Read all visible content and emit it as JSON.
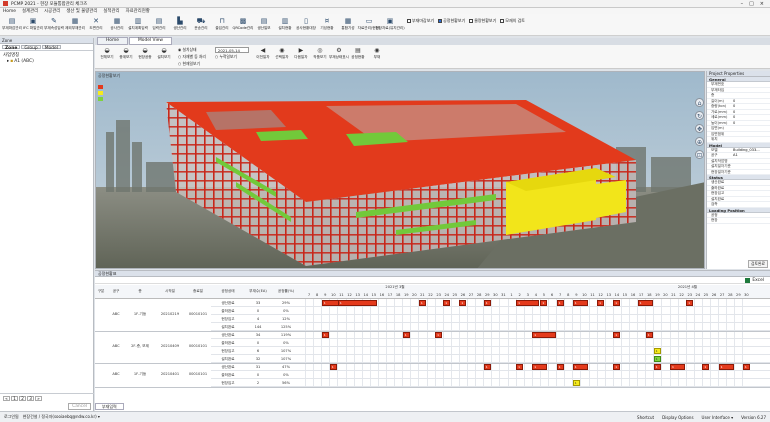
{
  "titlebar": {
    "title": "PCMP 2021 - 현장 모듈통합관리 체크즈"
  },
  "menu": [
    "Home",
    "설계관리",
    "시공관리",
    "생산 및 물량관리",
    "실적관리",
    "자료관리현황"
  ],
  "ribbon": {
    "buttons": [
      {
        "label": "부재마감관리",
        "icon": "layers-icon"
      },
      {
        "label": "IFC 파일관리",
        "icon": "ifc-file-icon"
      },
      {
        "label": "부재속성입력",
        "icon": "edit-icon"
      },
      {
        "label": "제외부재관리",
        "icon": "table-icon"
      },
      {
        "label": "도면관리",
        "icon": "cross-icon"
      },
      {
        "label": "공사관리",
        "icon": "grid-icon"
      },
      {
        "label": "설치계획입력",
        "icon": "calendar-icon"
      },
      {
        "label": "입력관리",
        "icon": "form-icon"
      },
      {
        "label": "생산관리",
        "icon": "factory-icon"
      },
      {
        "label": "운송관리",
        "icon": "truck-icon"
      },
      {
        "label": "출입관리",
        "icon": "gate-icon"
      },
      {
        "label": "QRCode관리",
        "icon": "qrcode-icon"
      },
      {
        "label": "생산일보",
        "icon": "report-icon"
      },
      {
        "label": "설치현황",
        "icon": "chart-icon"
      },
      {
        "label": "공사현황대장",
        "icon": "book-icon"
      },
      {
        "label": "기성현황",
        "icon": "money-icon"
      },
      {
        "label": "통합기성",
        "icon": "calc-icon"
      },
      {
        "label": "자료관리(현장)",
        "icon": "folder-icon"
      },
      {
        "label": "현장자료(유지관리)",
        "icon": "archive-icon"
      }
    ],
    "checks": [
      {
        "label": "부재마감보기",
        "on": false
      },
      {
        "label": "공정현황보기",
        "on": true
      },
      {
        "label": "물량현황보기",
        "on": false
      },
      {
        "label": "모재의 검토",
        "on": false
      }
    ]
  },
  "left": {
    "title": "Zone",
    "tabs": [
      "Zone",
      "Group",
      "Model"
    ],
    "tree_root": "사업명칭",
    "tree_item": "A1 (ABC)",
    "pages": [
      "1",
      "2",
      "3"
    ],
    "cancel": "Cancel"
  },
  "doctabs": [
    "Home",
    "Model View"
  ],
  "subtool": {
    "buttons": [
      {
        "label": "전체보기",
        "icon": "car-icon"
      },
      {
        "label": "충계보기",
        "icon": "car-icon"
      },
      {
        "label": "현장공종",
        "icon": "car-icon"
      },
      {
        "label": "설치보기",
        "icon": "car-icon"
      }
    ],
    "radios": [
      "설치상태",
      "자재별 등 처리",
      "현재일보기"
    ],
    "date": "2021-05-14",
    "radio2": "누적일보기",
    "buttons2": [
      {
        "label": "이전일자",
        "icon": "prev-icon"
      },
      {
        "label": "선택일자",
        "icon": "select-icon"
      },
      {
        "label": "다음일자",
        "icon": "next-icon"
      },
      {
        "label": "작품보기",
        "icon": "view-icon"
      },
      {
        "label": "부재상태표시",
        "icon": "gear-icon"
      },
      {
        "label": "공정현황",
        "icon": "status-icon"
      },
      {
        "label": "부재",
        "icon": "target-icon"
      }
    ]
  },
  "viewport": {
    "title": "공정현황보기"
  },
  "properties": {
    "title": "Project Properties",
    "sections": [
      {
        "name": "General",
        "rows": [
          [
            "부재번호",
            ""
          ],
          [
            "부재타입",
            ""
          ],
          [
            "층",
            ""
          ],
          [
            "길이(m)",
            "0"
          ],
          [
            "중량(ton)",
            "0"
          ],
          [
            "가로(mm)",
            "0"
          ],
          [
            "세로(mm)",
            "0"
          ],
          [
            "높이(mm)",
            "0"
          ],
          [
            "입면(m)",
            ""
          ],
          [
            "입면범위",
            ""
          ],
          [
            "위치",
            ""
          ]
        ]
      },
      {
        "name": "Model",
        "rows": [
          [
            "모델",
            "Building_033..."
          ],
          [
            "공구",
            "A1"
          ],
          [
            "설치작업명",
            ""
          ],
          [
            "설치일자기준",
            ""
          ],
          [
            "현장일자기준",
            ""
          ]
        ]
      },
      {
        "name": "Status",
        "rows": [
          [
            "생산완료",
            ""
          ],
          [
            "출하완료",
            ""
          ],
          [
            "현장입고",
            ""
          ],
          [
            "설치완료",
            ""
          ],
          [
            "검측",
            ""
          ]
        ]
      },
      {
        "name": "Loading Position",
        "rows": [
          [
            "공정",
            ""
          ],
          [
            "현장",
            ""
          ]
        ]
      }
    ],
    "footer": "검토완료"
  },
  "schedule": {
    "title": "공정현황표",
    "excel": "Excel",
    "headers": {
      "type": "구분",
      "zone": "공구",
      "floor": "층",
      "start": "시작일",
      "end": "종료일",
      "status": "공정상태",
      "total": "부재수(EA)",
      "rate": "공정률(%)"
    },
    "month1": "2021년 3월",
    "month2": "2021년 4월",
    "days": [
      7,
      8,
      9,
      10,
      11,
      12,
      13,
      14,
      15,
      16,
      17,
      18,
      19,
      20,
      21,
      22,
      23,
      24,
      25,
      26,
      27,
      28,
      29,
      30,
      31,
      1,
      2,
      3,
      4,
      5,
      6,
      7,
      8,
      9,
      10,
      11,
      12,
      13,
      14,
      15,
      16,
      17,
      18,
      19,
      20,
      21,
      22,
      23,
      24,
      25,
      26,
      27,
      28,
      29,
      30
    ],
    "groups": [
      {
        "zone": "ABC",
        "floor": "1F-기둥",
        "start": "20210219",
        "end": "00010101",
        "rows": [
          [
            "생산완료",
            "33",
            "29%"
          ],
          [
            "출하완료",
            "0",
            "0%"
          ],
          [
            "현장입고",
            "4",
            "12%"
          ],
          [
            "설치완료",
            "144",
            "125%"
          ]
        ]
      },
      {
        "zone": "ABC",
        "floor": "2F-층, 보제",
        "start": "20210409",
        "end": "00010101",
        "rows": [
          [
            "생산완료",
            "34",
            "119%"
          ],
          [
            "출하완료",
            "0",
            "0%"
          ],
          [
            "현장입고",
            "6",
            "107%"
          ],
          [
            "설치완료",
            "32",
            "107%"
          ]
        ]
      },
      {
        "zone": "ABC",
        "floor": "1F-기둥",
        "start": "20210401",
        "end": "00010101",
        "rows": [
          [
            "생산완료",
            "31",
            "47%"
          ],
          [
            "출하완료",
            "0",
            "0%"
          ],
          [
            "현장입고",
            "2",
            "56%"
          ]
        ]
      }
    ],
    "cell_label": "1",
    "bars": [
      [
        0,
        2,
        3,
        "r"
      ],
      [
        0,
        4,
        5,
        "r"
      ],
      [
        0,
        14,
        1,
        "r"
      ],
      [
        0,
        17,
        1,
        "r"
      ],
      [
        0,
        19,
        1,
        "r"
      ],
      [
        0,
        22,
        1,
        "r"
      ],
      [
        0,
        26,
        3,
        "r"
      ],
      [
        0,
        29,
        1,
        "r"
      ],
      [
        0,
        31,
        1,
        "r"
      ],
      [
        0,
        33,
        2,
        "r"
      ],
      [
        0,
        36,
        1,
        "r"
      ],
      [
        0,
        38,
        1,
        "r"
      ],
      [
        0,
        41,
        2,
        "r"
      ],
      [
        0,
        47,
        1,
        "r"
      ],
      [
        4,
        2,
        1,
        "r"
      ],
      [
        4,
        12,
        1,
        "r"
      ],
      [
        4,
        16,
        1,
        "r"
      ],
      [
        4,
        28,
        3,
        "r"
      ],
      [
        4,
        38,
        1,
        "r"
      ],
      [
        4,
        42,
        1,
        "r"
      ],
      [
        6,
        43,
        1,
        "y"
      ],
      [
        7,
        43,
        1,
        "g"
      ],
      [
        8,
        3,
        1,
        "r"
      ],
      [
        8,
        22,
        1,
        "r"
      ],
      [
        8,
        26,
        1,
        "r"
      ],
      [
        8,
        28,
        2,
        "r"
      ],
      [
        8,
        31,
        1,
        "r"
      ],
      [
        8,
        33,
        2,
        "r"
      ],
      [
        8,
        38,
        1,
        "r"
      ],
      [
        8,
        43,
        1,
        "r"
      ],
      [
        8,
        45,
        2,
        "r"
      ],
      [
        8,
        49,
        1,
        "r"
      ],
      [
        8,
        51,
        2,
        "r"
      ],
      [
        8,
        54,
        1,
        "r"
      ],
      [
        10,
        33,
        1,
        "y"
      ]
    ]
  },
  "bottom_tab": "부재입력",
  "status": {
    "left": "로그인됨",
    "user": "현장건설 / 정국자(sooiaebq@ndw.co.kr) ▾",
    "shortcut": "Shortcut",
    "display": "Display Options",
    "ui": "User Interface ▾",
    "version": "Version 6.27"
  },
  "colors": {
    "produced": "#e43a1c",
    "delivered": "#f6ea1c",
    "received": "#7ed33e"
  }
}
